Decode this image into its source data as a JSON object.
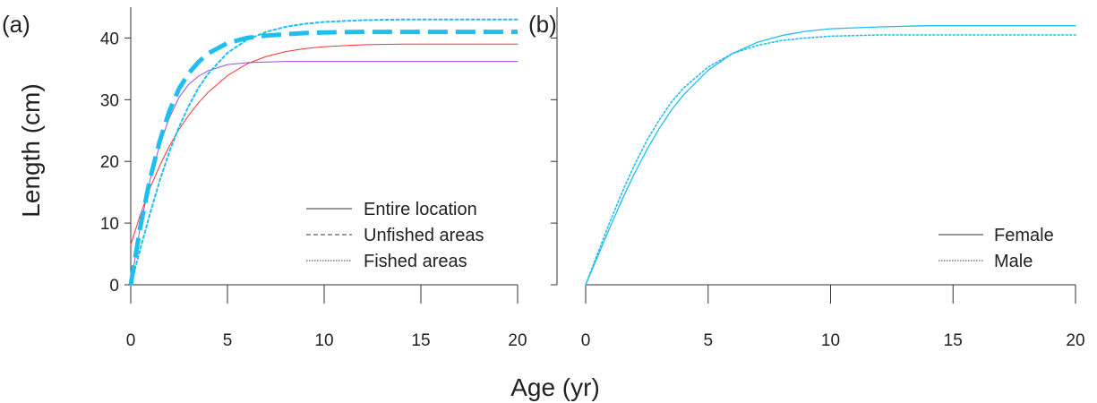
{
  "chart_data": [
    {
      "type": "line",
      "panel_label": "(a)",
      "xlabel": "Age (yr)",
      "ylabel": "Length (cm)",
      "xlim": [
        0,
        20
      ],
      "ylim": [
        0,
        45
      ],
      "xticks": [
        0,
        5,
        10,
        15,
        20
      ],
      "yticks": [
        0,
        10,
        20,
        30,
        40
      ],
      "grid": false,
      "legend_position": "bottom-right",
      "legend": [
        {
          "label": "Entire location",
          "style": "solid"
        },
        {
          "label": "Unfished areas",
          "style": "dashed"
        },
        {
          "label": "Fished areas",
          "style": "dotted"
        }
      ],
      "x": [
        0,
        0.5,
        1,
        1.5,
        2,
        2.5,
        3,
        3.5,
        4,
        5,
        6,
        7,
        8,
        9,
        10,
        12,
        14,
        16,
        18,
        20
      ],
      "series": [
        {
          "color": "#ff3030",
          "style": "solid",
          "width": 1,
          "values": [
            6.5,
            11.4,
            15.7,
            19.3,
            22.5,
            25.2,
            27.5,
            29.5,
            31.2,
            33.9,
            35.8,
            37.0,
            37.8,
            38.3,
            38.6,
            38.9,
            39.0,
            39.0,
            39.0,
            39.0
          ]
        },
        {
          "color": "#9b4fd6",
          "style": "solid",
          "width": 1,
          "values": [
            0,
            9.6,
            17.0,
            22.7,
            27.1,
            30.4,
            32.5,
            33.8,
            34.7,
            35.7,
            36.0,
            36.1,
            36.2,
            36.2,
            36.2,
            36.2,
            36.2,
            36.2,
            36.2,
            36.2
          ]
        },
        {
          "color": "#1fbef0",
          "style": "dashed",
          "width": 5,
          "values": [
            0,
            9.5,
            17.2,
            23.3,
            28.2,
            31.8,
            34.3,
            36.1,
            37.5,
            39.2,
            40.0,
            40.4,
            40.6,
            40.8,
            40.9,
            41.0,
            41.0,
            41.0,
            41.0,
            41.0
          ]
        },
        {
          "color": "#1fbef0",
          "style": "dotted",
          "width": 2,
          "values": [
            0,
            5.9,
            11.6,
            16.9,
            21.6,
            25.6,
            29.0,
            31.9,
            34.2,
            37.6,
            39.7,
            41.0,
            41.8,
            42.3,
            42.6,
            42.9,
            43.0,
            43.0,
            43.0,
            43.0
          ]
        }
      ]
    },
    {
      "type": "line",
      "panel_label": "(b)",
      "xlabel": "Age (yr)",
      "xlim": [
        0,
        20
      ],
      "ylim": [
        0,
        45
      ],
      "xticks": [
        0,
        5,
        10,
        15,
        20
      ],
      "yticks": [
        0,
        10,
        20,
        30,
        40
      ],
      "grid": false,
      "legend_position": "bottom-right",
      "legend": [
        {
          "label": "Female",
          "style": "solid"
        },
        {
          "label": "Male",
          "style": "dotted"
        }
      ],
      "x": [
        0,
        0.5,
        1,
        1.5,
        2,
        2.5,
        3,
        3.5,
        4,
        5,
        6,
        7,
        8,
        9,
        10,
        12,
        14,
        16,
        18,
        20
      ],
      "series": [
        {
          "color": "#1fbef0",
          "style": "solid",
          "width": 1.3,
          "values": [
            0,
            4.7,
            9.4,
            13.9,
            18.1,
            21.9,
            25.3,
            28.3,
            30.8,
            34.8,
            37.5,
            39.3,
            40.4,
            41.1,
            41.5,
            41.8,
            42.0,
            42.0,
            42.0,
            42.0
          ]
        },
        {
          "color": "#1fbef0",
          "style": "dotted",
          "width": 1.6,
          "values": [
            0,
            5.2,
            10.3,
            15.1,
            19.5,
            23.4,
            26.7,
            29.6,
            31.9,
            35.3,
            37.5,
            38.8,
            39.6,
            40.0,
            40.3,
            40.5,
            40.5,
            40.5,
            40.5,
            40.5
          ]
        }
      ]
    }
  ]
}
